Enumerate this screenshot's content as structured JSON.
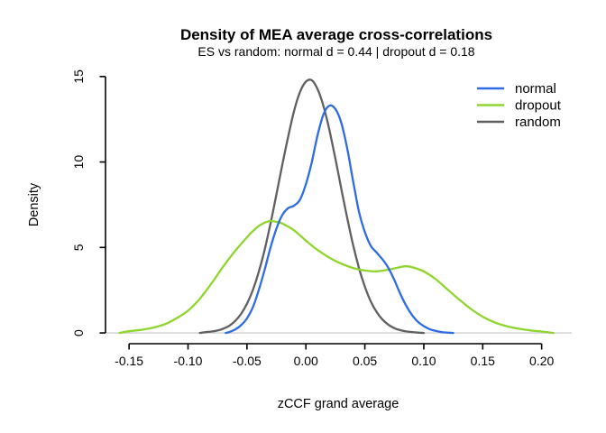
{
  "figure": {
    "title": "Density of MEA average cross-correlations",
    "subtitle": "ES vs random: normal d = 0.44 | dropout d = 0.18",
    "xlabel": "zCCF grand average",
    "ylabel": "Density"
  },
  "colors": {
    "normal": "#2e6be4",
    "dropout": "#8ed62e",
    "random": "#606060",
    "zero_line": "#d6d6d6",
    "axis": "#000000"
  },
  "legend": {
    "position": "top-right",
    "items": [
      {
        "label": "normal",
        "color": "#2e6be4"
      },
      {
        "label": "dropout",
        "color": "#8ed62e"
      },
      {
        "label": "random",
        "color": "#606060"
      }
    ]
  },
  "chart_data": {
    "type": "line",
    "title": "Density of MEA average cross-correlations",
    "subtitle": "ES vs random: normal d = 0.44 | dropout d = 0.18",
    "xlabel": "zCCF grand average",
    "ylabel": "Density",
    "xlim": [
      -0.17,
      0.2255
    ],
    "ylim": [
      -0.63,
      15.15
    ],
    "x_ticks": [
      -0.15,
      -0.1,
      -0.05,
      0.0,
      0.05,
      0.1,
      0.15,
      0.2
    ],
    "x_tick_labels": [
      "-0.15",
      "-0.10",
      "-0.05",
      "0.00",
      "0.05",
      "0.10",
      "0.15",
      "0.20"
    ],
    "y_ticks": [
      0,
      5,
      10,
      15
    ],
    "y_tick_labels": [
      "0",
      "5",
      "10",
      "15"
    ],
    "grid": false,
    "zero_line": true,
    "legend_position": "top-right",
    "series": [
      {
        "name": "random",
        "color": "#606060",
        "peak": {
          "x": 0.0,
          "y": 14.8
        },
        "x": [
          -0.09,
          -0.085,
          -0.08,
          -0.075,
          -0.07,
          -0.065,
          -0.06,
          -0.055,
          -0.05,
          -0.045,
          -0.04,
          -0.035,
          -0.03,
          -0.025,
          -0.02,
          -0.015,
          -0.01,
          -0.005,
          0,
          0.005,
          0.01,
          0.015,
          0.02,
          0.025,
          0.03,
          0.035,
          0.04,
          0.045,
          0.05,
          0.055,
          0.06,
          0.065,
          0.07,
          0.075,
          0.08,
          0.085,
          0.09,
          0.095,
          0.1
        ],
        "y": [
          0,
          0.05,
          0.08,
          0.14,
          0.25,
          0.42,
          0.7,
          1.11,
          1.71,
          2.51,
          3.57,
          4.87,
          6.41,
          8.1,
          9.85,
          11.5,
          13,
          14.1,
          14.7,
          14.78,
          14.25,
          13.25,
          11.85,
          10.2,
          8.45,
          6.73,
          5.16,
          3.81,
          2.71,
          1.85,
          1.22,
          0.78,
          0.48,
          0.28,
          0.16,
          0.09,
          0.05,
          0.02,
          0
        ]
      },
      {
        "name": "dropout",
        "color": "#8ed62e",
        "peak": {
          "x": -0.03,
          "y": 6.55
        },
        "x": [
          -0.158,
          -0.15,
          -0.14,
          -0.13,
          -0.12,
          -0.11,
          -0.1,
          -0.09,
          -0.08,
          -0.07,
          -0.06,
          -0.05,
          -0.045,
          -0.04,
          -0.035,
          -0.03,
          -0.025,
          -0.02,
          -0.01,
          0,
          0.01,
          0.02,
          0.03,
          0.04,
          0.05,
          0.06,
          0.07,
          0.08,
          0.085,
          0.09,
          0.1,
          0.11,
          0.12,
          0.13,
          0.14,
          0.15,
          0.16,
          0.17,
          0.18,
          0.19,
          0.2,
          0.21
        ],
        "y": [
          0,
          0.1,
          0.18,
          0.3,
          0.5,
          0.85,
          1.3,
          2,
          2.9,
          3.9,
          4.8,
          5.6,
          5.95,
          6.25,
          6.45,
          6.55,
          6.5,
          6.4,
          6,
          5.4,
          4.85,
          4.4,
          4.05,
          3.8,
          3.65,
          3.6,
          3.7,
          3.85,
          3.9,
          3.85,
          3.6,
          3.15,
          2.55,
          1.95,
          1.4,
          0.95,
          0.62,
          0.4,
          0.25,
          0.15,
          0.08,
          0
        ]
      },
      {
        "name": "normal",
        "color": "#2e6be4",
        "peak": {
          "x": 0.02,
          "y": 13.3
        },
        "x": [
          -0.068,
          -0.065,
          -0.06,
          -0.055,
          -0.05,
          -0.045,
          -0.04,
          -0.035,
          -0.03,
          -0.025,
          -0.02,
          -0.015,
          -0.01,
          -0.005,
          0,
          0.005,
          0.01,
          0.015,
          0.02,
          0.025,
          0.03,
          0.035,
          0.04,
          0.045,
          0.05,
          0.055,
          0.06,
          0.065,
          0.07,
          0.075,
          0.08,
          0.085,
          0.09,
          0.095,
          0.1,
          0.105,
          0.11,
          0.115,
          0.12,
          0.125
        ],
        "y": [
          0,
          0.05,
          0.2,
          0.45,
          0.85,
          1.5,
          2.5,
          3.7,
          5,
          6.1,
          6.9,
          7.3,
          7.45,
          7.8,
          8.7,
          10,
          11.6,
          12.8,
          13.3,
          13.1,
          12.3,
          10.8,
          8.9,
          7.1,
          5.9,
          5.1,
          4.7,
          4.3,
          3.8,
          3.1,
          2.3,
          1.6,
          1.05,
          0.65,
          0.4,
          0.22,
          0.12,
          0.05,
          0.02,
          0
        ]
      }
    ]
  }
}
